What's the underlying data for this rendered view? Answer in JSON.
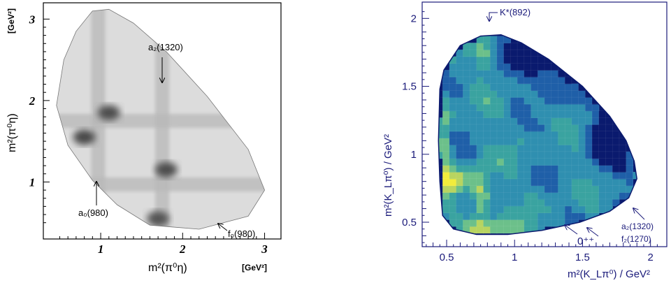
{
  "figure": {
    "left_panel": {
      "y_unit": "[GeV²]",
      "x_unit": "[GeV²]",
      "y_label": "m²(π⁰η)",
      "x_label": "m²(π⁰η)",
      "annotations": [
        "a₂(1320)",
        "a₀(980)",
        "f₀(980)"
      ]
    },
    "right_panel": {
      "y_label": "m²(K_Lπ⁰) / GeV²",
      "x_label": "m²(K_Lπ⁰) / GeV²",
      "annotations": [
        "K*(892)",
        "0⁺⁺",
        "a₂(1320)",
        "f₂(1270)"
      ]
    }
  },
  "chart_data": [
    {
      "type": "heatmap",
      "title": "",
      "xlabel": "m²(π⁰η)",
      "ylabel": "m²(π⁰η)",
      "x_unit": "[GeV²]",
      "y_unit": "[GeV²]",
      "xlim": [
        0.3,
        3.2
      ],
      "ylim": [
        0.3,
        3.2
      ],
      "x_ticks": [
        {
          "value": 1,
          "label": "1"
        },
        {
          "value": 2,
          "label": "2"
        },
        {
          "value": 3,
          "label": "3"
        }
      ],
      "y_ticks": [
        {
          "value": 1,
          "label": "1"
        },
        {
          "value": 2,
          "label": "2"
        },
        {
          "value": 3,
          "label": "3"
        }
      ],
      "colormap": "grayscale",
      "dalitz_boundary": [
        [
          0.46,
          1.94
        ],
        [
          0.55,
          2.5
        ],
        [
          0.7,
          2.85
        ],
        [
          0.9,
          3.1
        ],
        [
          1.1,
          3.12
        ],
        [
          1.4,
          2.95
        ],
        [
          1.8,
          2.6
        ],
        [
          2.3,
          2.05
        ],
        [
          2.8,
          1.4
        ],
        [
          3.0,
          0.9
        ],
        [
          2.8,
          0.58
        ],
        [
          2.2,
          0.42
        ],
        [
          1.6,
          0.47
        ],
        [
          1.2,
          0.72
        ],
        [
          0.9,
          1.02
        ],
        [
          0.6,
          1.45
        ]
      ],
      "bands": [
        {
          "orientation": "vertical",
          "at": 0.97
        },
        {
          "orientation": "horizontal",
          "at": 0.97
        },
        {
          "orientation": "vertical",
          "at": 1.75
        },
        {
          "orientation": "horizontal",
          "at": 1.75
        }
      ],
      "hotspots": [
        {
          "x": 0.8,
          "y": 1.55,
          "intensity": 0.9
        },
        {
          "x": 1.1,
          "y": 1.85,
          "intensity": 0.85
        },
        {
          "x": 1.8,
          "y": 1.15,
          "intensity": 0.85
        },
        {
          "x": 1.7,
          "y": 0.55,
          "intensity": 0.8
        }
      ],
      "annotations": [
        {
          "text": "a₂(1320)",
          "x": 1.75,
          "y": 2.55
        },
        {
          "text": "a₀(980)",
          "x": 0.97,
          "y": 0.6
        },
        {
          "text": "f₀(980)",
          "x": 2.6,
          "y": 0.45
        }
      ]
    },
    {
      "type": "heatmap",
      "title": "",
      "xlabel": "m²(K_Lπ⁰) / GeV²",
      "ylabel": "m²(K_Lπ⁰) / GeV²",
      "xlim": [
        0.32,
        2.12
      ],
      "ylim": [
        0.32,
        2.12
      ],
      "x_ticks": [
        {
          "value": 0.5,
          "label": "0.5"
        },
        {
          "value": 1,
          "label": "1"
        },
        {
          "value": 1.5,
          "label": "1.5"
        },
        {
          "value": 2,
          "label": "2"
        }
      ],
      "y_ticks": [
        {
          "value": 0.5,
          "label": "0.5"
        },
        {
          "value": 1,
          "label": "1"
        },
        {
          "value": 1.5,
          "label": "1.5"
        },
        {
          "value": 2,
          "label": "2"
        }
      ],
      "colormap": "rainbow (navy → teal → green → yellow → red)",
      "dalitz_boundary": [
        [
          0.45,
          1.48
        ],
        [
          0.48,
          1.62
        ],
        [
          0.6,
          1.8
        ],
        [
          0.75,
          1.87
        ],
        [
          0.9,
          1.88
        ],
        [
          1.05,
          1.82
        ],
        [
          1.25,
          1.7
        ],
        [
          1.5,
          1.5
        ],
        [
          1.7,
          1.28
        ],
        [
          1.82,
          1.1
        ],
        [
          1.88,
          0.95
        ],
        [
          1.9,
          0.82
        ],
        [
          1.84,
          0.68
        ],
        [
          1.7,
          0.58
        ],
        [
          1.48,
          0.5
        ],
        [
          1.2,
          0.44
        ],
        [
          0.95,
          0.41
        ],
        [
          0.72,
          0.41
        ],
        [
          0.55,
          0.45
        ],
        [
          0.47,
          0.55
        ],
        [
          0.45,
          0.8
        ],
        [
          0.44,
          1.1
        ]
      ],
      "annotations": [
        {
          "text": "K*(892)",
          "x": 0.8,
          "y": 1.98
        },
        {
          "text": "0⁺⁺",
          "x": 1.45,
          "y": 0.34
        },
        {
          "text": "a₂(1320)",
          "x": 1.98,
          "y": 0.47
        },
        {
          "text": "f₂(1270)",
          "x": 1.98,
          "y": 0.37
        }
      ]
    }
  ]
}
